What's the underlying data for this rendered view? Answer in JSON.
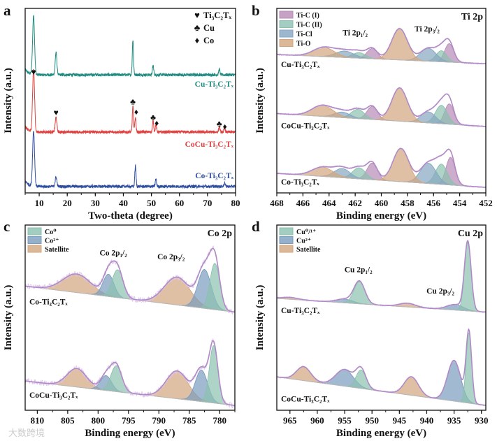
{
  "watermark": "大数跨境",
  "chart_data": [
    {
      "id": "a",
      "letter": "a",
      "type": "line",
      "xlabel": "Two-theta (degree)",
      "ylabel": "Intensity (a.u.)",
      "xlim": [
        5,
        80
      ],
      "ylim": [
        0,
        100
      ],
      "xticks": [
        10,
        20,
        30,
        40,
        50,
        60,
        70,
        80
      ],
      "legend": [
        {
          "symbol": "♥",
          "label": "Ti₃C₂Tₓ"
        },
        {
          "symbol": "♣",
          "label": "Cu"
        },
        {
          "symbol": "♦",
          "label": "Co"
        }
      ],
      "legend_position": "top-right",
      "spectra": [
        {
          "name": "Cu-Ti₃C₂Tₓ",
          "color": "#1f8b80",
          "baseline": [
            64,
            64
          ],
          "peaks": [
            {
              "center": 8,
              "height": 32,
              "width": 0.35
            },
            {
              "center": 16,
              "height": 12,
              "width": 0.3
            },
            {
              "center": 43.4,
              "height": 19,
              "width": 0.22
            },
            {
              "center": 50.6,
              "height": 5,
              "width": 0.22
            },
            {
              "center": 74.2,
              "height": 3,
              "width": 0.22
            }
          ]
        },
        {
          "name": "CoCu-Ti₃C₂Tₓ",
          "color": "#e0403e",
          "baseline": [
            33,
            33
          ],
          "peaks": [
            {
              "center": 8,
              "height": 34,
              "width": 0.35
            },
            {
              "center": 16,
              "height": 8,
              "width": 0.3
            },
            {
              "center": 43.4,
              "height": 14,
              "width": 0.22
            },
            {
              "center": 44.3,
              "height": 8,
              "width": 0.22
            },
            {
              "center": 50.6,
              "height": 6,
              "width": 0.22
            },
            {
              "center": 51.6,
              "height": 4,
              "width": 0.22
            },
            {
              "center": 74.2,
              "height": 3,
              "width": 0.22
            },
            {
              "center": 76.1,
              "height": 2,
              "width": 0.22
            }
          ]
        },
        {
          "name": "Co-Ti₃C₂Tₓ",
          "color": "#2e4ea2",
          "baseline": [
            3.5,
            3.5
          ],
          "peaks": [
            {
              "center": 8,
              "height": 30,
              "width": 0.35
            },
            {
              "center": 16,
              "height": 5,
              "width": 0.3
            },
            {
              "center": 44.3,
              "height": 11,
              "width": 0.22
            },
            {
              "center": 51.6,
              "height": 4,
              "width": 0.22
            },
            {
              "center": 76.1,
              "height": 2,
              "width": 0.22
            }
          ]
        }
      ],
      "annotations": [
        {
          "text": "♥",
          "x": 8,
          "y": 65
        },
        {
          "text": "♥",
          "x": 16,
          "y": 43
        },
        {
          "text": "♣",
          "x": 43.4,
          "y": 49
        },
        {
          "text": "♦",
          "x": 44.6,
          "y": 43.5
        },
        {
          "text": "♣",
          "x": 50.6,
          "y": 40.5
        },
        {
          "text": "♦",
          "x": 51.9,
          "y": 37.5
        },
        {
          "text": "♣",
          "x": 74.2,
          "y": 37
        },
        {
          "text": "♦",
          "x": 76.2,
          "y": 35.5
        }
      ]
    },
    {
      "id": "b",
      "letter": "b",
      "type": "line",
      "title": "Ti 2p",
      "xlabel": "Binding energy (eV)",
      "ylabel": "Intensity (a.u.)",
      "xlim": [
        468,
        452
      ],
      "ylim": [
        0,
        100
      ],
      "xticks": [
        468,
        466,
        464,
        462,
        460,
        458,
        456,
        454,
        452
      ],
      "legend": [
        {
          "label": "Ti-C (I)",
          "color": "#d8a2d6"
        },
        {
          "label": "Ti-C (II)",
          "color": "#a4e2cf"
        },
        {
          "label": "Ti-Cl",
          "color": "#9cc3e3"
        },
        {
          "label": "Ti-O",
          "color": "#f8c393"
        }
      ],
      "legend_position": "top-left",
      "spectra": [
        {
          "name": "Cu-Ti₃C₂Tₓ",
          "baseline": [
            75,
            70
          ],
          "peaks": [
            {
              "component": 0,
              "center": 454.8,
              "height": 10,
              "width": 0.35
            },
            {
              "component": 0,
              "center": 460.7,
              "height": 5.5,
              "width": 0.4
            },
            {
              "component": 1,
              "center": 455.4,
              "height": 6,
              "width": 0.4
            },
            {
              "component": 1,
              "center": 461.7,
              "height": 3,
              "width": 0.5
            },
            {
              "component": 2,
              "center": 456.4,
              "height": 7,
              "width": 0.6
            },
            {
              "component": 2,
              "center": 462.8,
              "height": 3.5,
              "width": 0.7
            },
            {
              "component": 3,
              "center": 458.6,
              "height": 17,
              "width": 0.6
            },
            {
              "component": 3,
              "center": 464.4,
              "height": 5,
              "width": 0.8
            }
          ]
        },
        {
          "name": "CoCu-Ti₃C₂Tₓ",
          "baseline": [
            43,
            36
          ],
          "peaks": [
            {
              "component": 0,
              "center": 454.8,
              "height": 11,
              "width": 0.35
            },
            {
              "component": 0,
              "center": 460.7,
              "height": 7,
              "width": 0.4
            },
            {
              "component": 1,
              "center": 455.4,
              "height": 10,
              "width": 0.45
            },
            {
              "component": 1,
              "center": 461.8,
              "height": 5,
              "width": 0.5
            },
            {
              "component": 2,
              "center": 456.4,
              "height": 6,
              "width": 0.55
            },
            {
              "component": 2,
              "center": 463,
              "height": 3,
              "width": 0.6
            },
            {
              "component": 3,
              "center": 458.6,
              "height": 18,
              "width": 0.6
            },
            {
              "component": 3,
              "center": 464.5,
              "height": 6,
              "width": 0.8
            }
          ]
        },
        {
          "name": "Co-Ti₃C₂Tₓ",
          "baseline": [
            10.6,
            3
          ],
          "peaks": [
            {
              "component": 0,
              "center": 454.7,
              "height": 15,
              "width": 0.35
            },
            {
              "component": 0,
              "center": 460.7,
              "height": 9,
              "width": 0.4
            },
            {
              "component": 1,
              "center": 455.4,
              "height": 11,
              "width": 0.45
            },
            {
              "component": 1,
              "center": 461.7,
              "height": 6,
              "width": 0.5
            },
            {
              "component": 2,
              "center": 456.4,
              "height": 11,
              "width": 0.6
            },
            {
              "component": 2,
              "center": 463,
              "height": 5,
              "width": 0.6
            },
            {
              "component": 3,
              "center": 458.5,
              "height": 18,
              "width": 0.6
            },
            {
              "component": 3,
              "center": 464.5,
              "height": 5,
              "width": 0.8
            }
          ]
        }
      ],
      "annotations": [
        {
          "text": "Ti 2p₁/₂",
          "x": 462,
          "y": 86.5
        },
        {
          "text": "Ti 2p₃/₂",
          "x": 456.5,
          "y": 88.5
        }
      ]
    },
    {
      "id": "c",
      "letter": "c",
      "type": "line",
      "title": "Co 2p",
      "xlabel": "Binding energy (eV)",
      "ylabel": "Intensity (a.u.)",
      "xlim": [
        812,
        777.5
      ],
      "ylim": [
        0,
        100
      ],
      "xticks": [
        810,
        805,
        800,
        795,
        790,
        785,
        780
      ],
      "legend": [
        {
          "label": "Co⁰",
          "color": "#a4e2cf"
        },
        {
          "label": "Co²⁺",
          "color": "#8fb8de"
        },
        {
          "label": "Satellite",
          "color": "#f8c393"
        }
      ],
      "legend_position": "top-left",
      "spectra": [
        {
          "name": "Co-Ti₃C₂Tₓ",
          "baseline": [
            67,
            53
          ],
          "peaks": [
            {
              "component": 2,
              "center": 803.5,
              "height": 10,
              "width": 2.3
            },
            {
              "component": 1,
              "center": 798.3,
              "height": 12,
              "width": 0.9
            },
            {
              "component": 0,
              "center": 796.8,
              "height": 15,
              "width": 0.9
            },
            {
              "component": 2,
              "center": 787,
              "height": 15,
              "width": 2.1
            },
            {
              "component": 1,
              "center": 782.5,
              "height": 21,
              "width": 1.1
            },
            {
              "component": 0,
              "center": 780.8,
              "height": 25,
              "width": 0.8
            }
          ]
        },
        {
          "name": "CoCu-Ti₃C₂Tₓ",
          "baseline": [
            15.8,
            2.6
          ],
          "peaks": [
            {
              "component": 2,
              "center": 803.5,
              "height": 10,
              "width": 1.6
            },
            {
              "component": 1,
              "center": 798.7,
              "height": 8,
              "width": 0.9
            },
            {
              "component": 0,
              "center": 797,
              "height": 14,
              "width": 0.9
            },
            {
              "component": 2,
              "center": 787,
              "height": 15,
              "width": 1.8
            },
            {
              "component": 1,
              "center": 783,
              "height": 17,
              "width": 1.0
            },
            {
              "component": 0,
              "center": 781,
              "height": 31,
              "width": 0.7
            }
          ]
        }
      ],
      "annotations": [
        {
          "text": "Co 2p₁/₂",
          "x": 797.5,
          "y": 84.5
        },
        {
          "text": "Co 2p₃/₂",
          "x": 788,
          "y": 82.6
        }
      ]
    },
    {
      "id": "d",
      "letter": "d",
      "type": "line",
      "title": "Cu 2p",
      "xlabel": "Binding energy (eV)",
      "ylabel": "Intensity (a.u.)",
      "xlim": [
        967.4,
        929.2
      ],
      "ylim": [
        0,
        100
      ],
      "xticks": [
        965,
        960,
        955,
        950,
        945,
        940,
        935,
        930
      ],
      "legend": [
        {
          "label": "Cu⁰/¹⁺",
          "color": "#a4e2cf"
        },
        {
          "label": "Cu²⁺",
          "color": "#8fb8de"
        },
        {
          "label": "Satellite",
          "color": "#f8c393"
        }
      ],
      "legend_position": "top-left",
      "spectra": [
        {
          "name": "Cu-Ti₃C₂Tₓ",
          "baseline": [
            60.4,
            53
          ],
          "peaks": [
            {
              "component": 2,
              "center": 965,
              "height": 1,
              "width": 1.5
            },
            {
              "component": 1,
              "center": 955,
              "height": 2,
              "width": 1.5
            },
            {
              "component": 0,
              "center": 952.3,
              "height": 12,
              "width": 1.0
            },
            {
              "component": 2,
              "center": 943.5,
              "height": 2,
              "width": 1.5
            },
            {
              "component": 1,
              "center": 934.8,
              "height": 3,
              "width": 1.5
            },
            {
              "component": 0,
              "center": 932.5,
              "height": 37,
              "width": 0.6
            }
          ]
        },
        {
          "name": "CoCu-Ti₃C₂Tₓ",
          "baseline": [
            18,
            2.6
          ],
          "peaks": [
            {
              "component": 2,
              "center": 962.5,
              "height": 7.5,
              "width": 1.3
            },
            {
              "component": 1,
              "center": 955,
              "height": 9,
              "width": 1.6
            },
            {
              "component": 0,
              "center": 952,
              "height": 10,
              "width": 0.9
            },
            {
              "component": 2,
              "center": 942.8,
              "height": 10,
              "width": 1.3
            },
            {
              "component": 1,
              "center": 935,
              "height": 22,
              "width": 1.2
            },
            {
              "component": 0,
              "center": 932.3,
              "height": 38,
              "width": 0.5
            }
          ]
        }
      ],
      "annotations": [
        {
          "text": "Cu 2p₁/₂",
          "x": 952.5,
          "y": 75.5
        },
        {
          "text": "Cu 2p₃/₂",
          "x": 937.5,
          "y": 64
        }
      ]
    }
  ]
}
